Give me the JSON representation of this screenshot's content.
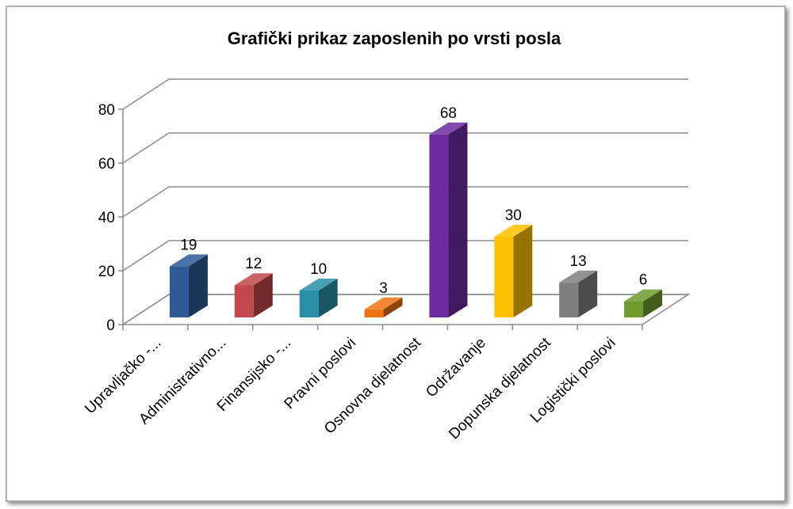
{
  "chart_data": {
    "type": "bar3d",
    "title": "Grafički prikaz zaposlenih po vrsti posla",
    "categories": [
      "Upravljačko -...",
      "Administrativno...",
      "Finansijsko -...",
      "Pravni poslovi",
      "Osnovna djelatnost",
      "Održavanje",
      "Dopunska djelatnost",
      "Logistički poslovi"
    ],
    "values": [
      19,
      12,
      10,
      3,
      68,
      30,
      13,
      6
    ],
    "colors": [
      "#2e5a96",
      "#c0474b",
      "#2a8fa6",
      "#ee7212",
      "#6c2a9e",
      "#ffc000",
      "#7f7f7f",
      "#6f9a2e"
    ],
    "ylim": [
      0,
      80
    ],
    "yticks": [
      0,
      20,
      40,
      60,
      80
    ],
    "grid": true
  }
}
